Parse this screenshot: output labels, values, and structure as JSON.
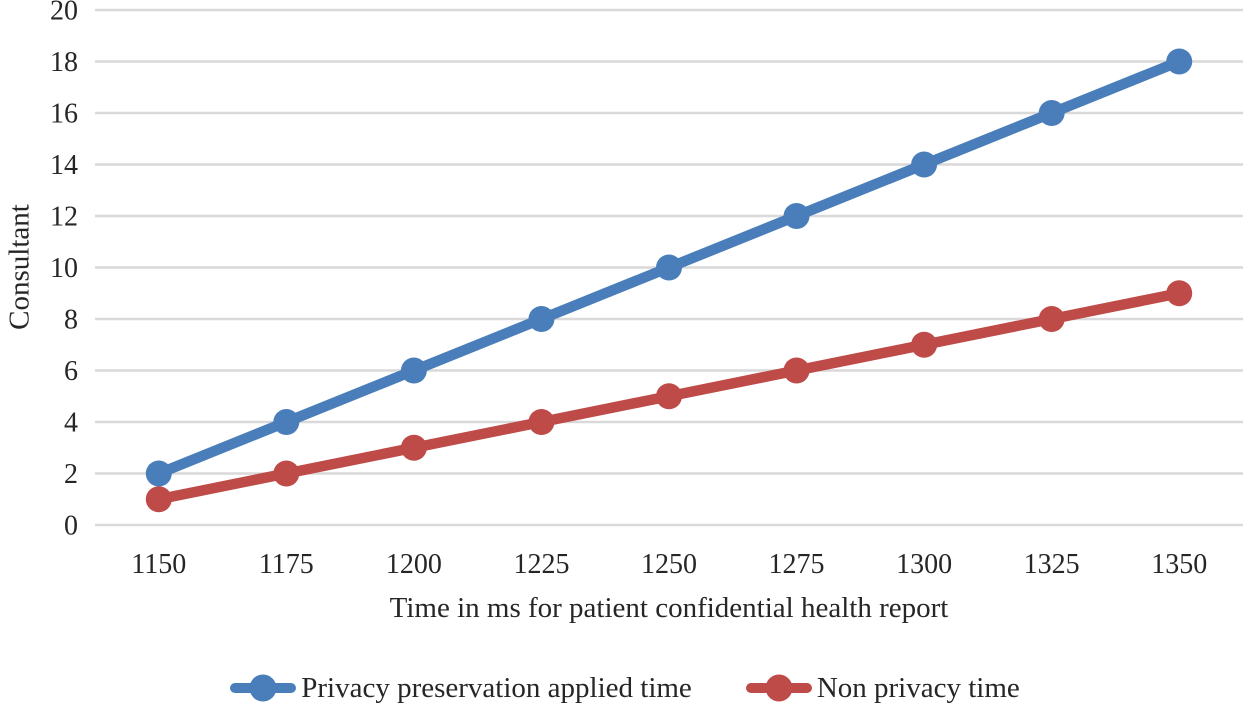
{
  "chart_data": {
    "type": "line",
    "categories": [
      "1150",
      "1175",
      "1200",
      "1225",
      "1250",
      "1275",
      "1300",
      "1325",
      "1350"
    ],
    "series": [
      {
        "name": "Privacy preservation applied time",
        "color": "#4a7ebb",
        "values": [
          2,
          4,
          6,
          8,
          10,
          12,
          14,
          16,
          18
        ]
      },
      {
        "name": "Non privacy time",
        "color": "#bf4b48",
        "values": [
          1,
          2,
          3,
          4,
          5,
          6,
          7,
          8,
          9
        ]
      }
    ],
    "xlabel": "Time in ms for patient confidential health report",
    "ylabel": "Consultant",
    "ylim": [
      0,
      20
    ],
    "ytick_step": 2,
    "grid": true,
    "grid_color": "#d9d9d9",
    "text_color": "#262626",
    "legend_position": "bottom"
  }
}
